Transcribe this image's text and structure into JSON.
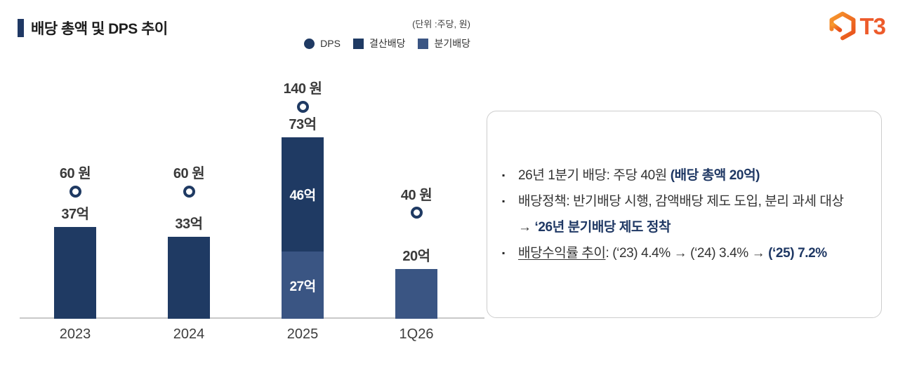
{
  "header": {
    "title": "배당 총액 및 DPS 추이",
    "logo_text": "T3"
  },
  "colors": {
    "navy_dark": "#1F3A63",
    "navy_light": "#3A5583",
    "emphasis_navy": "#1F3864",
    "logo_orange": "#ED5B2B",
    "axis_line": "#C9C9C9"
  },
  "chart_data": {
    "type": "bar",
    "subtype": "stacked-bar-with-dps-point-overlay",
    "title": "배당 총액 및 DPS 추이",
    "unit_label": "(단위 :주당, 원)",
    "categories": [
      "2023",
      "2024",
      "2025",
      "1Q26"
    ],
    "series": [
      {
        "name": "결산배당",
        "type": "bar",
        "unit": "억",
        "values": [
          37,
          33,
          46,
          0
        ],
        "color": "#1F3A63"
      },
      {
        "name": "분기배당",
        "type": "bar",
        "unit": "억",
        "values": [
          0,
          0,
          27,
          20
        ],
        "color": "#3A5583"
      },
      {
        "name": "DPS",
        "type": "point",
        "unit": "원",
        "values": [
          60,
          60,
          140,
          40
        ],
        "color": "#1F3A63"
      }
    ],
    "bars": [
      {
        "category": "2023",
        "total_label": "37억",
        "segments": [
          {
            "series": "결산배당",
            "value": 37
          }
        ]
      },
      {
        "category": "2024",
        "total_label": "33억",
        "segments": [
          {
            "series": "결산배당",
            "value": 33
          }
        ]
      },
      {
        "category": "2025",
        "total_label": "73억",
        "segments": [
          {
            "series": "분기배당",
            "value": 27,
            "label": "27억"
          },
          {
            "series": "결산배당",
            "value": 46,
            "label": "46억"
          }
        ]
      },
      {
        "category": "1Q26",
        "total_label": "20억",
        "segments": [
          {
            "series": "분기배당",
            "value": 20
          }
        ]
      }
    ],
    "dps_labels": [
      "60 원",
      "60 원",
      "140 원",
      "40 원"
    ],
    "legend": [
      {
        "shape": "circle",
        "label": "DPS",
        "color": "#1F3A63"
      },
      {
        "shape": "square",
        "label": "결산배당",
        "color": "#1F3A63"
      },
      {
        "shape": "square",
        "label": "분기배당",
        "color": "#3A5583"
      }
    ],
    "y_axis_visible": false,
    "grid": false,
    "legend_position": "top-right"
  },
  "summary_box": {
    "bullets": [
      {
        "lines": [
          [
            {
              "t": "26년 1분기 배당: 주당 40원 "
            },
            {
              "t": "(배당 총액 20억)",
              "em": true
            }
          ]
        ]
      },
      {
        "lines": [
          [
            {
              "t": "배당정책: 반기배당 시행, 감액배당 제도 도입, 분리 과세 대상"
            }
          ],
          [
            {
              "t": "→ "
            },
            {
              "t": "‘26년 분기배당 제도 정착",
              "em": true
            }
          ]
        ]
      },
      {
        "lines": [
          [
            {
              "t": "배당수익률 추이",
              "u": true
            },
            {
              "t": ": (‘23) 4.4% → (‘24) 3.4% → "
            },
            {
              "t": "(‘25) 7.2%",
              "em": true
            }
          ]
        ]
      }
    ]
  }
}
